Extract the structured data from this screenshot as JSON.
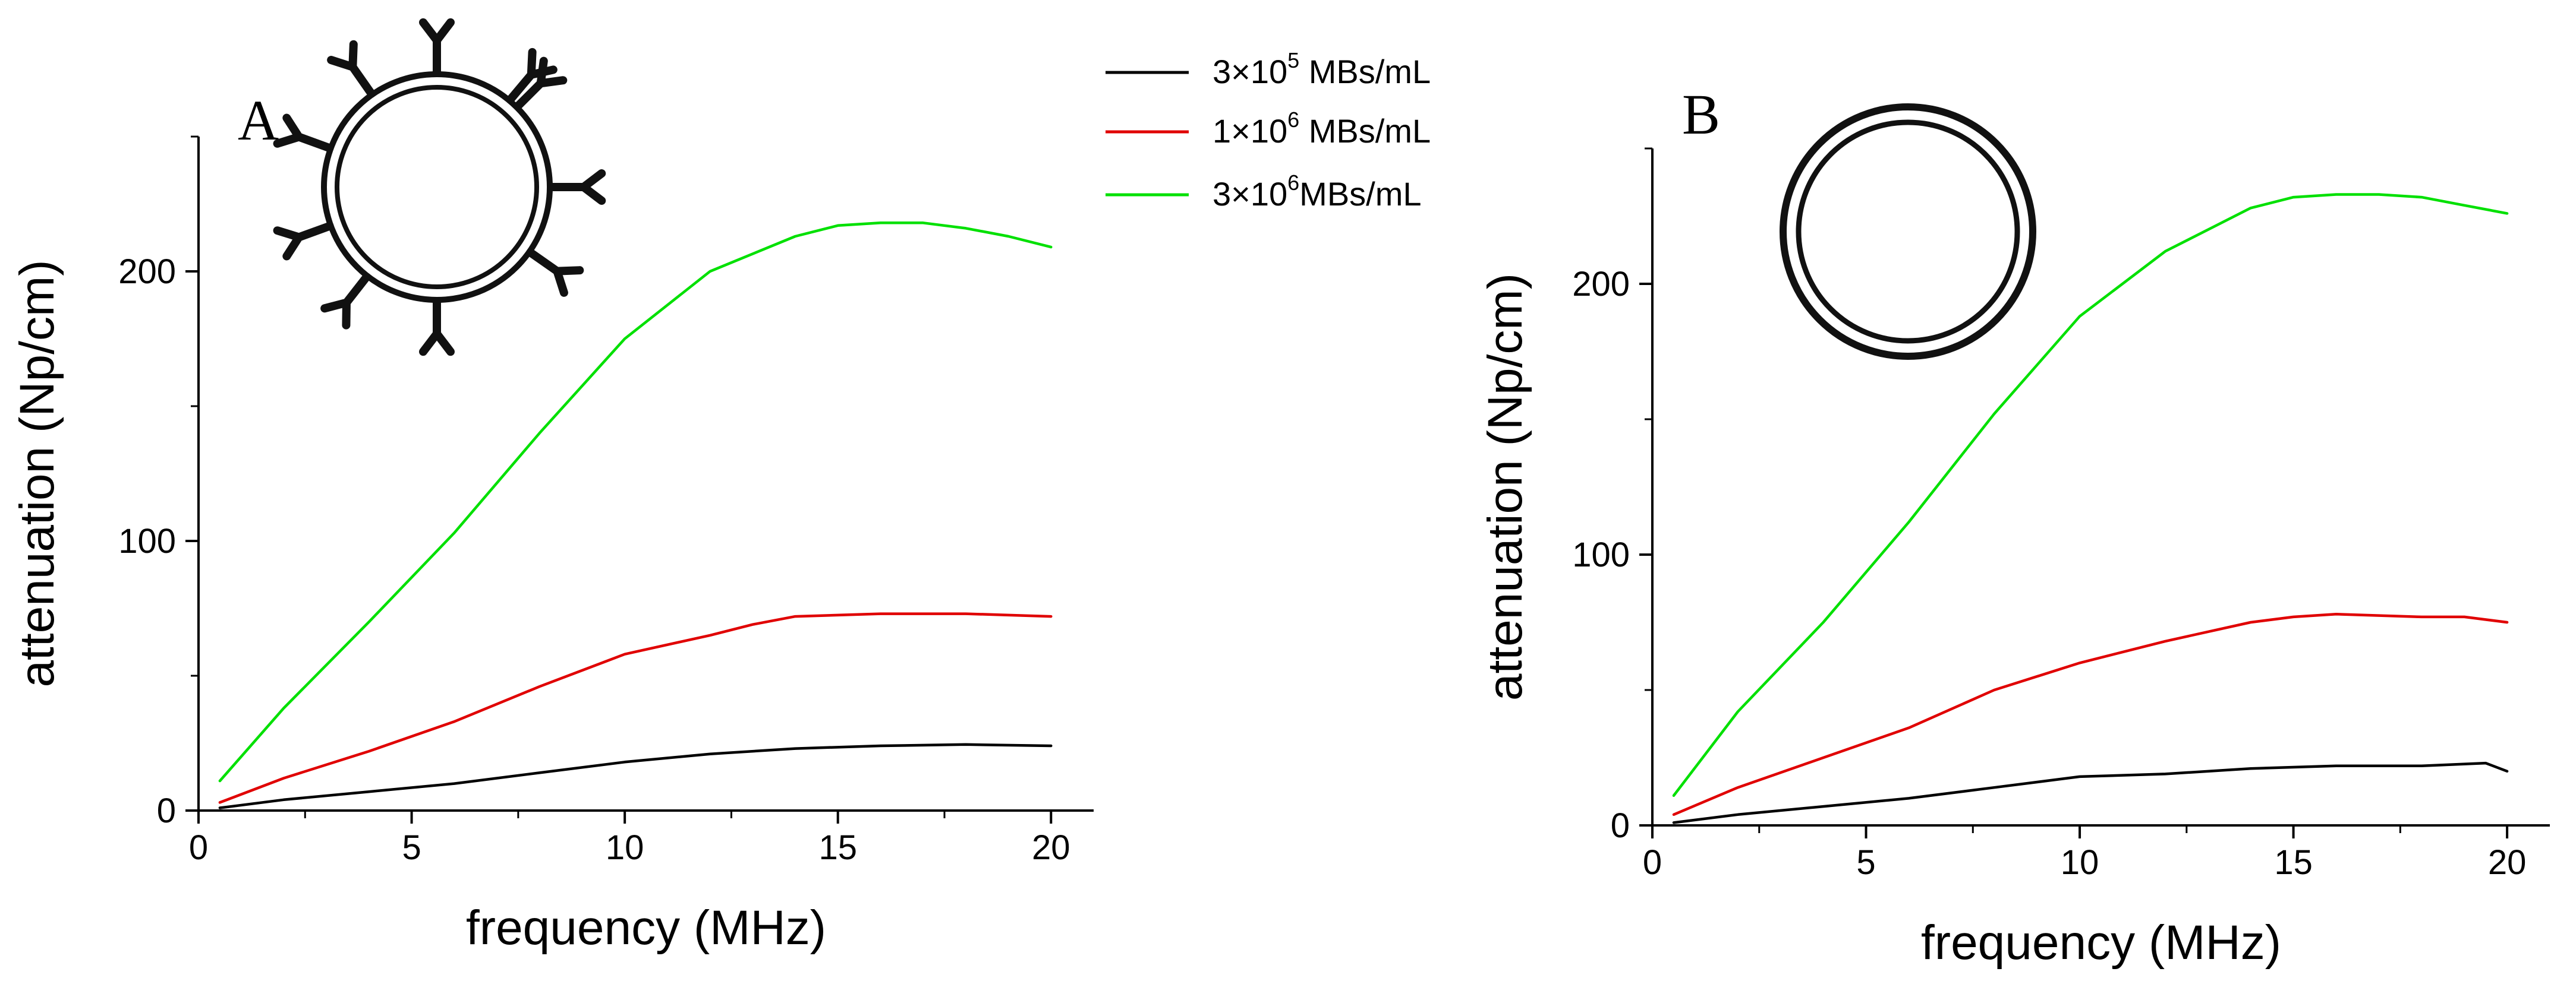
{
  "figure": {
    "legend": [
      {
        "coef": "3×10",
        "exp": "5",
        "unit": " MBs/mL",
        "color": "#000000"
      },
      {
        "coef": "1×10",
        "exp": "6",
        "unit": " MBs/mL",
        "color": "#e00000"
      },
      {
        "coef": "3×10",
        "exp": "6",
        "unit": "MBs/mL",
        "color": "#00e000"
      }
    ]
  },
  "chart_data": [
    {
      "type": "line",
      "panel": "A",
      "icon": "targeted-microbubble-with-antibodies",
      "xlabel": "frequency (MHz)",
      "ylabel": "attenuation (Np/cm)",
      "xlim": [
        0,
        21
      ],
      "ylim": [
        0,
        250
      ],
      "xticks": [
        0,
        5,
        10,
        15,
        20
      ],
      "yticks": [
        0,
        100,
        200
      ],
      "series": [
        {
          "name": "3×10^5 MBs/mL",
          "color": "#000000",
          "x": [
            0.5,
            2,
            4,
            6,
            8,
            10,
            12,
            14,
            16,
            18,
            20
          ],
          "y": [
            1,
            4,
            7,
            10,
            14,
            18,
            21,
            23,
            24,
            24.5,
            24
          ]
        },
        {
          "name": "1×10^6 MBs/mL",
          "color": "#e00000",
          "x": [
            0.5,
            2,
            4,
            6,
            8,
            10,
            12,
            13,
            14,
            16,
            18,
            20
          ],
          "y": [
            3,
            12,
            22,
            33,
            46,
            58,
            65,
            69,
            72,
            73,
            73,
            72
          ]
        },
        {
          "name": "3×10^6 MBs/mL",
          "color": "#00e000",
          "x": [
            0.5,
            2,
            4,
            6,
            8,
            10,
            12,
            14,
            15,
            16,
            17,
            18,
            19,
            20
          ],
          "y": [
            11,
            38,
            70,
            103,
            140,
            175,
            200,
            213,
            217,
            218,
            218,
            216,
            213,
            209
          ]
        }
      ]
    },
    {
      "type": "line",
      "panel": "B",
      "icon": "plain-microbubble",
      "xlabel": "frequency (MHz)",
      "ylabel": "attenuation (Np/cm)",
      "xlim": [
        0,
        21
      ],
      "ylim": [
        0,
        250
      ],
      "xticks": [
        0,
        5,
        10,
        15,
        20
      ],
      "yticks": [
        0,
        100,
        200
      ],
      "series": [
        {
          "name": "3×10^5 MBs/mL",
          "color": "#000000",
          "x": [
            0.5,
            2,
            4,
            6,
            8,
            10,
            12,
            14,
            16,
            18,
            19.5,
            20
          ],
          "y": [
            1,
            4,
            7,
            10,
            14,
            18,
            19,
            21,
            22,
            22,
            23,
            20
          ]
        },
        {
          "name": "1×10^6 MBs/mL",
          "color": "#e00000",
          "x": [
            0.5,
            2,
            4,
            6,
            8,
            10,
            12,
            14,
            15,
            16,
            18,
            19,
            20
          ],
          "y": [
            4,
            14,
            25,
            36,
            50,
            60,
            68,
            75,
            77,
            78,
            77,
            77,
            75
          ]
        },
        {
          "name": "3×10^6 MBs/mL",
          "color": "#00e000",
          "x": [
            0.5,
            2,
            4,
            6,
            8,
            10,
            12,
            14,
            15,
            16,
            17,
            18,
            19,
            20
          ],
          "y": [
            11,
            42,
            75,
            112,
            152,
            188,
            212,
            228,
            232,
            233,
            233,
            232,
            229,
            226
          ]
        }
      ]
    }
  ]
}
